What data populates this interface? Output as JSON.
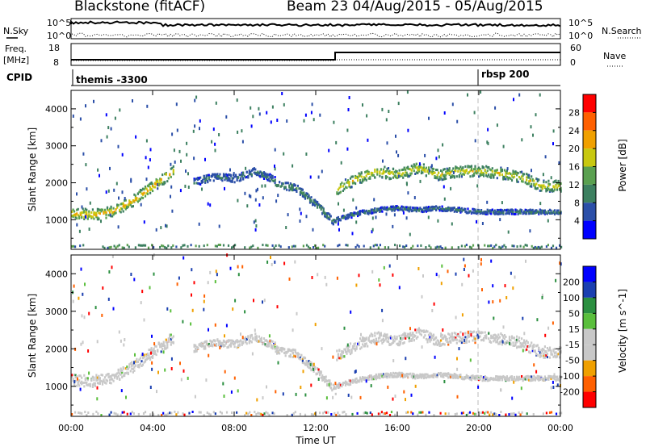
{
  "header": {
    "station": "Blackstone (fitACF)",
    "beam": "Beam 23 04/Aug/2015 - 05/Aug/2015"
  },
  "top_panels": {
    "nsky_label": "N.Sky",
    "nsky_ticks": [
      "10^5",
      "10^0"
    ],
    "nsky_ticks_right": [
      "10^5",
      "10^0"
    ],
    "nsearch_label": "N.Search",
    "freq_label_1": "Freq.",
    "freq_label_2": "[MHz]",
    "freq_ticks": [
      "18",
      "8"
    ],
    "nave_ticks": [
      "60",
      "0"
    ],
    "nave_label": "Nave",
    "cpid_label": "CPID",
    "cpid_1": "themis -3300",
    "cpid_2": "rbsp 200"
  },
  "colors": {
    "power_scale": [
      "#0000ff",
      "#2b4fa8",
      "#3d8060",
      "#5aa050",
      "#c8c810",
      "#f0a000",
      "#ff6000",
      "#ff0000"
    ],
    "velocity_scale": [
      "#ff0000",
      "#ff6000",
      "#f0a000",
      "#c8c8c8",
      "#c8c8c8",
      "#5abf3c",
      "#2b8f40",
      "#1a3fb0",
      "#0000ff"
    ],
    "ground_scatter": "#c8c8c8"
  },
  "chart_data": [
    {
      "type": "heatmap",
      "name": "power",
      "ylabel": "Slant Range [km]",
      "yticks": [
        1000,
        2000,
        3000,
        4000
      ],
      "ylim": [
        200,
        4500
      ],
      "xlim": [
        0,
        24
      ],
      "colorbar_label": "Power [dB]",
      "colorbar_ticks": [
        4,
        8,
        12,
        16,
        20,
        24,
        28
      ],
      "colorbar_range": [
        0,
        32
      ],
      "grid": false,
      "bands": [
        {
          "x": [
            0,
            1,
            2,
            3,
            4,
            5
          ],
          "y": [
            1150,
            1120,
            1200,
            1500,
            1900,
            2300
          ],
          "width": 300,
          "power": 18
        },
        {
          "x": [
            6,
            7,
            8,
            9,
            10
          ],
          "y": [
            2000,
            2150,
            2100,
            2300,
            2050
          ],
          "width": 200,
          "power": 8
        },
        {
          "x": [
            10,
            11,
            12,
            13
          ],
          "y": [
            1950,
            1850,
            1400,
            850
          ],
          "width": 200,
          "power": 10
        },
        {
          "x": [
            13,
            14,
            15,
            16,
            17,
            18,
            19,
            20,
            21,
            22,
            23,
            24
          ],
          "y": [
            1000,
            1150,
            1250,
            1300,
            1250,
            1300,
            1250,
            1200,
            1200,
            1200,
            1200,
            1200
          ],
          "width": 120,
          "power": 8
        },
        {
          "x": [
            13,
            14,
            15,
            16,
            17,
            18,
            19,
            20,
            21,
            22,
            23,
            24
          ],
          "y": [
            1800,
            2100,
            2300,
            2200,
            2400,
            2200,
            2300,
            2300,
            2250,
            2150,
            1900,
            1900
          ],
          "width": 300,
          "power": 16
        }
      ]
    },
    {
      "type": "heatmap",
      "name": "velocity",
      "ylabel": "Slant Range [km]",
      "xlabel": "Time UT",
      "xticks": [
        "00:00",
        "04:00",
        "08:00",
        "12:00",
        "16:00",
        "20:00",
        "00:00"
      ],
      "xlim": [
        0,
        24
      ],
      "yticks": [
        1000,
        2000,
        3000,
        4000
      ],
      "ylim": [
        200,
        4500
      ],
      "colorbar_label": "Velocity [m s^-1]",
      "colorbar_ticks": [
        200,
        100,
        50,
        15,
        -15,
        -50,
        -100,
        -200
      ],
      "grid": false,
      "bands": [
        {
          "x": [
            0,
            1,
            2,
            3,
            4,
            5
          ],
          "y": [
            1150,
            1120,
            1200,
            1500,
            1900,
            2300
          ],
          "width": 300,
          "velocity": 0
        },
        {
          "x": [
            6,
            7,
            8,
            9,
            10
          ],
          "y": [
            2000,
            2150,
            2100,
            2300,
            2050
          ],
          "width": 200,
          "velocity": 0
        },
        {
          "x": [
            10,
            11,
            12,
            13
          ],
          "y": [
            1950,
            1850,
            1400,
            850
          ],
          "width": 200,
          "velocity": 0
        },
        {
          "x": [
            13,
            14,
            15,
            16,
            17,
            18,
            19,
            20,
            21,
            22,
            23,
            24
          ],
          "y": [
            1000,
            1150,
            1250,
            1300,
            1250,
            1300,
            1250,
            1200,
            1200,
            1200,
            1200,
            1200
          ],
          "width": 120,
          "velocity": 0
        },
        {
          "x": [
            13,
            14,
            15,
            16,
            17,
            18,
            19,
            20,
            21,
            22,
            23,
            24
          ],
          "y": [
            1800,
            2100,
            2300,
            2200,
            2400,
            2200,
            2300,
            2300,
            2250,
            2150,
            1900,
            1900
          ],
          "width": 300,
          "velocity": 0
        }
      ]
    }
  ]
}
